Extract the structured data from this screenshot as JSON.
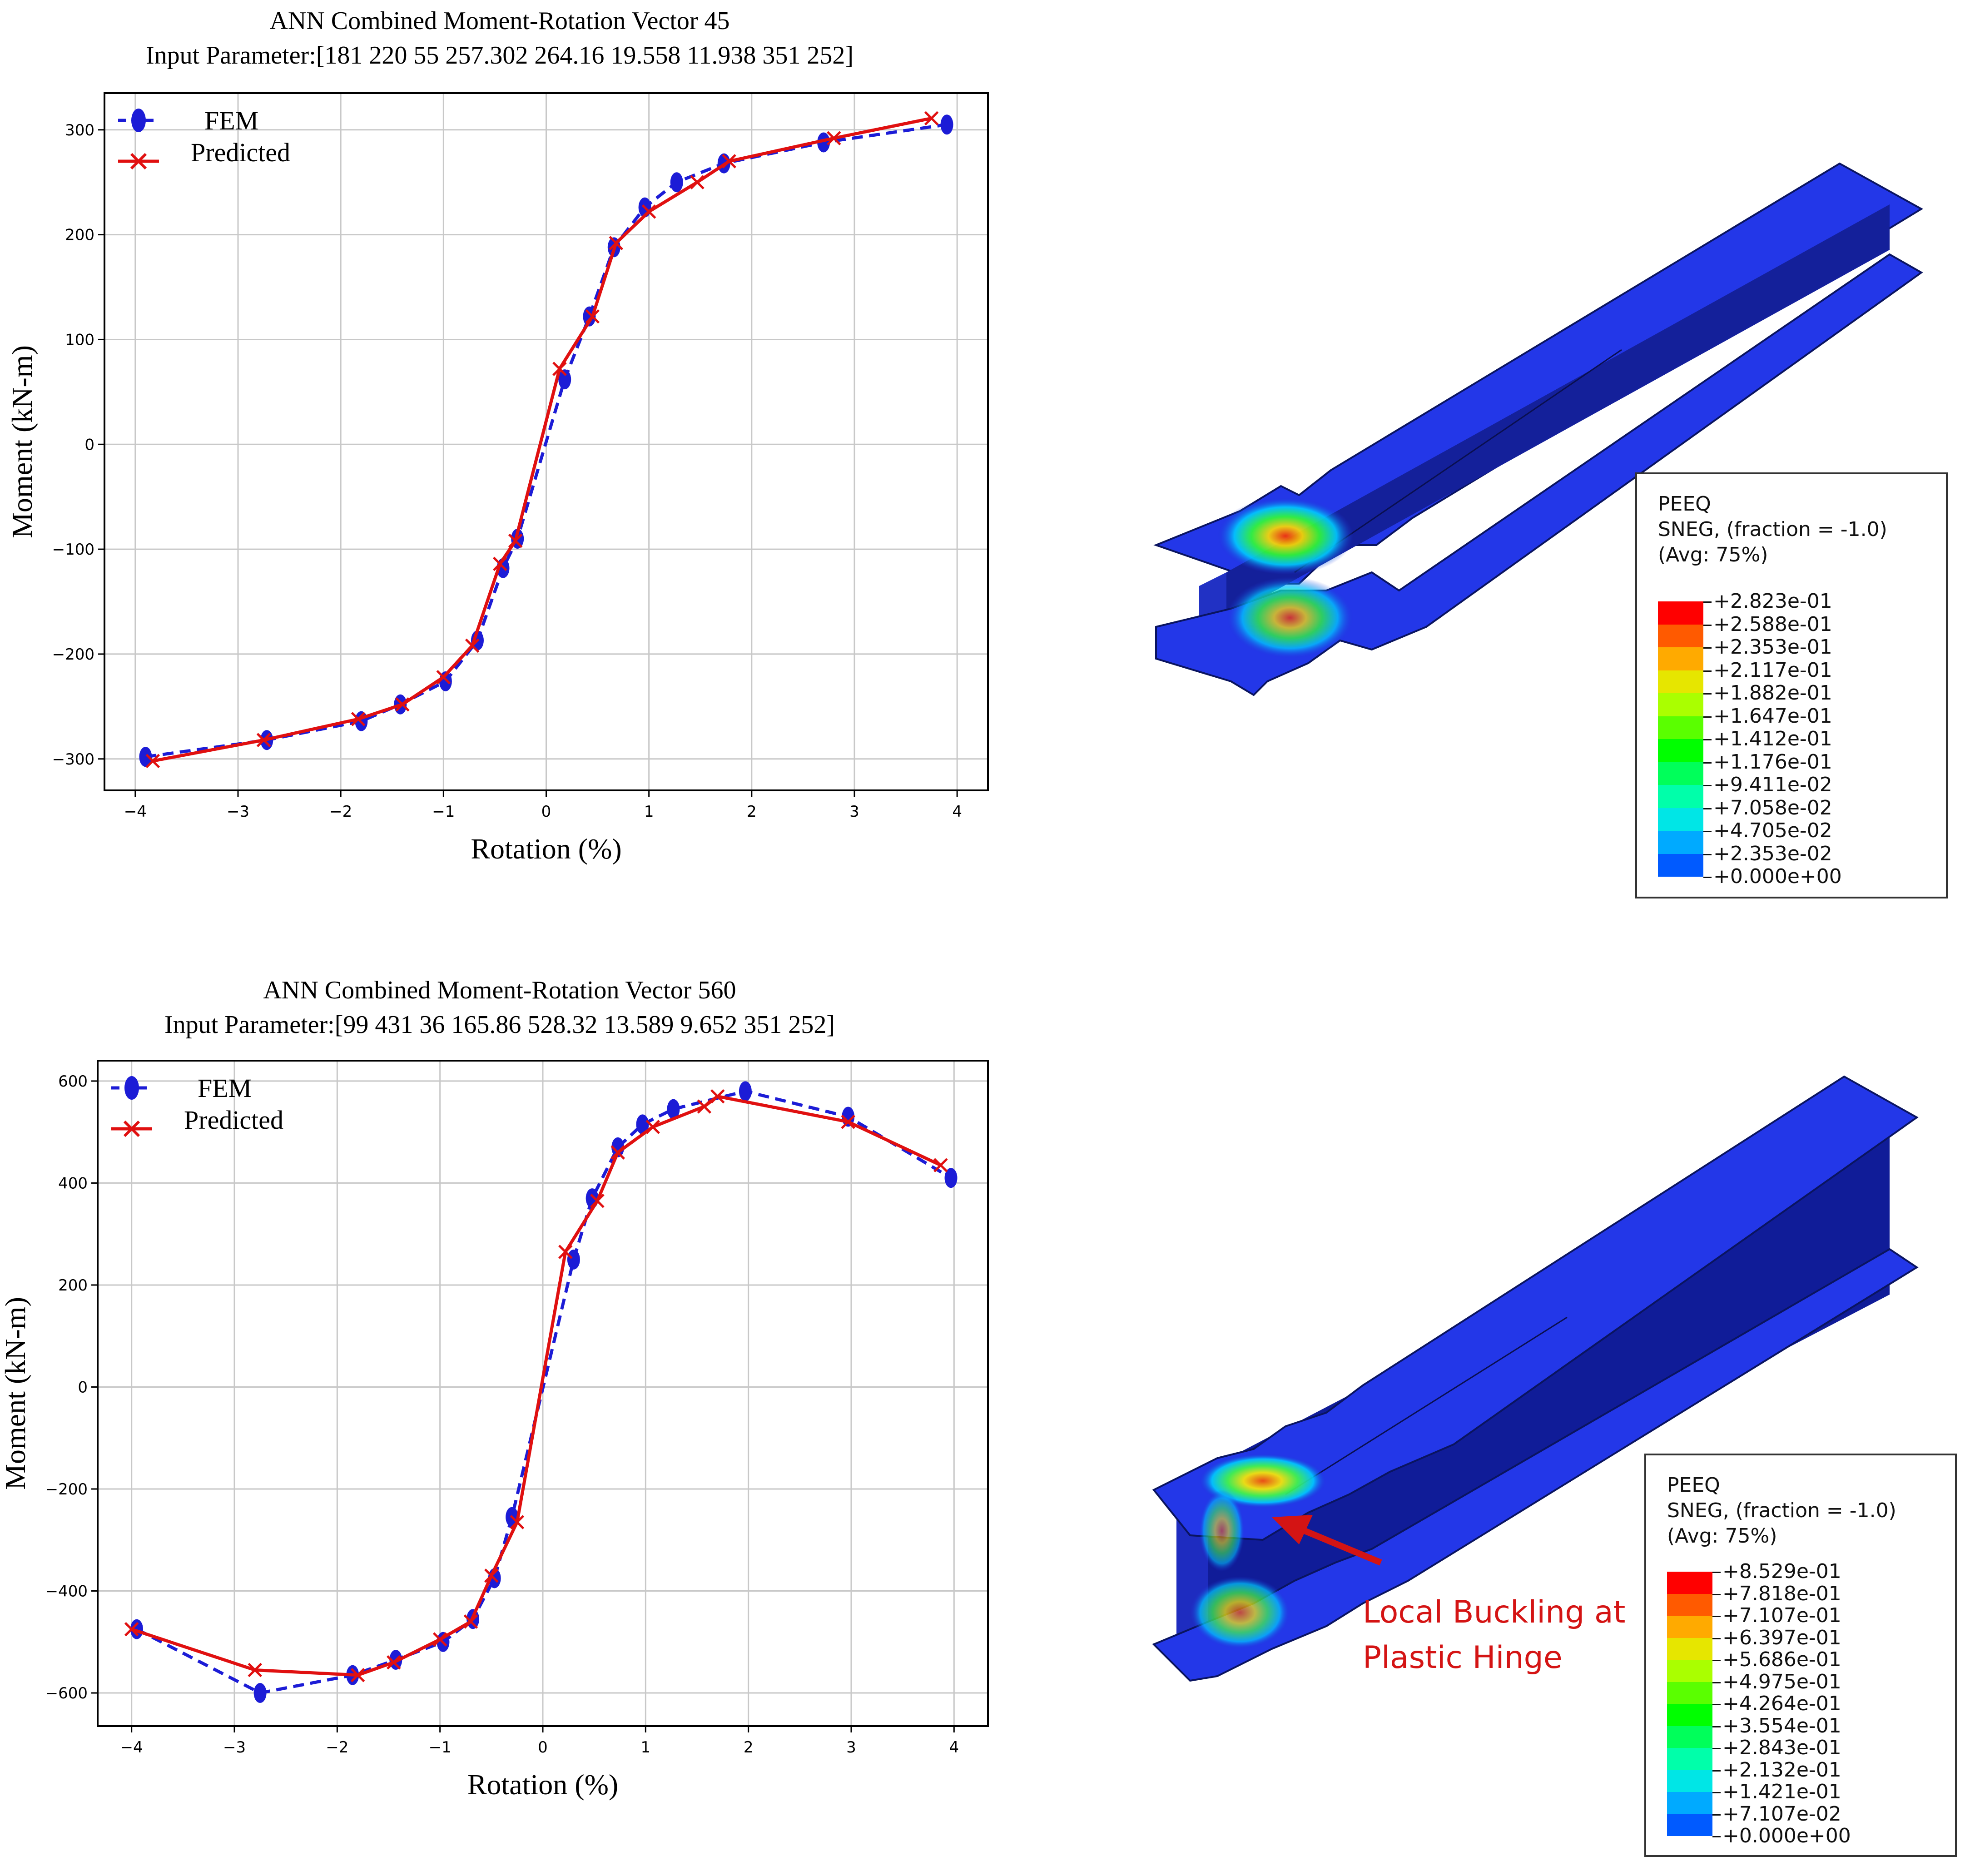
{
  "chart_data": [
    {
      "type": "line",
      "title": "ANN Combined Moment-Rotation Vector 45",
      "subtitle": "Input Parameter:[181  220  55  257.302  264.16  19.558  11.938  351  252]",
      "xlabel": "Rotation (%)",
      "ylabel": "Moment  (kN-m)",
      "xlim": [
        -4.3,
        4.3
      ],
      "ylim": [
        -330,
        335
      ],
      "xticks": [
        -4,
        -3,
        -2,
        -1,
        0,
        1,
        2,
        3,
        4
      ],
      "xtick_labels": [
        "−4",
        "−3",
        "−2",
        "−1",
        "0",
        "1",
        "2",
        "3",
        "4"
      ],
      "yticks": [
        -300,
        -200,
        -100,
        0,
        100,
        200,
        300
      ],
      "ytick_labels": [
        "−300",
        "−200",
        "−100",
        "0",
        "100",
        "200",
        "300"
      ],
      "grid": true,
      "legend_position": "top-left",
      "series": [
        {
          "name": "FEM",
          "color": "#1c1cd6",
          "style": "dashed-marker-ellipse",
          "x": [
            -3.9,
            -2.72,
            -1.8,
            -1.42,
            -0.98,
            -0.67,
            -0.42,
            -0.28,
            0.18,
            0.42,
            0.66,
            0.96,
            1.27,
            1.73,
            2.7,
            3.9
          ],
          "y": [
            -298,
            -282,
            -264,
            -248,
            -226,
            -187,
            -118,
            -90,
            62,
            122,
            188,
            226,
            250,
            268,
            288,
            305
          ]
        },
        {
          "name": "Predicted",
          "color": "#e01010",
          "style": "solid-marker-x",
          "x": [
            -3.83,
            -2.75,
            -1.83,
            -1.4,
            -1.0,
            -0.72,
            -0.45,
            -0.3,
            0.13,
            0.45,
            0.68,
            1.0,
            1.47,
            1.78,
            2.8,
            3.75
          ],
          "y": [
            -302,
            -282,
            -262,
            -248,
            -222,
            -192,
            -114,
            -92,
            72,
            122,
            192,
            222,
            250,
            270,
            292,
            311
          ]
        }
      ]
    },
    {
      "type": "line",
      "title": "ANN Combined Moment-Rotation Vector 560",
      "subtitle": "Input Parameter:[99  431  36  165.86  528.32  13.589  9.652  351  252]",
      "xlabel": "Rotation (%)",
      "ylabel": "Moment  (kN-m)",
      "xlim": [
        -4.33,
        4.33
      ],
      "ylim": [
        -665,
        640
      ],
      "xticks": [
        -4,
        -3,
        -2,
        -1,
        0,
        1,
        2,
        3,
        4
      ],
      "xtick_labels": [
        "−4",
        "−3",
        "−2",
        "−1",
        "0",
        "1",
        "2",
        "3",
        "4"
      ],
      "yticks": [
        -600,
        -400,
        -200,
        0,
        200,
        400,
        600
      ],
      "ytick_labels": [
        "−600",
        "−400",
        "−200",
        "0",
        "200",
        "400",
        "600"
      ],
      "grid": true,
      "legend_position": "top-left",
      "series": [
        {
          "name": "FEM",
          "color": "#1c1cd6",
          "style": "dashed-marker-ellipse",
          "x": [
            -3.95,
            -2.75,
            -1.85,
            -1.43,
            -0.97,
            -0.68,
            -0.47,
            -0.3,
            0.3,
            0.48,
            0.73,
            0.97,
            1.27,
            1.97,
            2.97,
            3.97
          ],
          "y": [
            -475,
            -600,
            -565,
            -535,
            -500,
            -455,
            -375,
            -255,
            250,
            370,
            470,
            515,
            545,
            580,
            530,
            410
          ]
        },
        {
          "name": "Predicted",
          "color": "#e01010",
          "style": "solid-marker-x",
          "x": [
            -4.0,
            -2.8,
            -1.8,
            -1.45,
            -1.0,
            -0.7,
            -0.5,
            -0.25,
            0.22,
            0.53,
            0.73,
            1.07,
            1.57,
            1.7,
            2.97,
            3.87
          ],
          "y": [
            -475,
            -555,
            -565,
            -540,
            -495,
            -460,
            -370,
            -265,
            265,
            365,
            460,
            510,
            550,
            570,
            520,
            435
          ]
        }
      ]
    }
  ],
  "contour_legends": [
    {
      "header": [
        "PEEQ",
        "SNEG, (fraction = -1.0)",
        "(Avg: 75%)"
      ],
      "levels": [
        "+2.823e-01",
        "+2.588e-01",
        "+2.353e-01",
        "+2.117e-01",
        "+1.882e-01",
        "+1.647e-01",
        "+1.412e-01",
        "+1.176e-01",
        "+9.411e-02",
        "+7.058e-02",
        "+4.705e-02",
        "+2.353e-02",
        "+0.000e+00"
      ],
      "colors": [
        "#ff0000",
        "#ff5a00",
        "#ffaa00",
        "#e6e600",
        "#aaff00",
        "#5aff00",
        "#00ff00",
        "#00ff5a",
        "#00ffaa",
        "#00e6e6",
        "#00aaff",
        "#005aff",
        "#0000ff"
      ]
    },
    {
      "header": [
        "PEEQ",
        "SNEG, (fraction = -1.0)",
        "(Avg: 75%)"
      ],
      "levels": [
        "+8.529e-01",
        "+7.818e-01",
        "+7.107e-01",
        "+6.397e-01",
        "+5.686e-01",
        "+4.975e-01",
        "+4.264e-01",
        "+3.554e-01",
        "+2.843e-01",
        "+2.132e-01",
        "+1.421e-01",
        "+7.107e-02",
        "+0.000e+00"
      ],
      "colors": [
        "#ff0000",
        "#ff5a00",
        "#ffaa00",
        "#e6e600",
        "#aaff00",
        "#5aff00",
        "#00ff00",
        "#00ff5a",
        "#00ffaa",
        "#00e6e6",
        "#00aaff",
        "#005aff",
        "#0000ff"
      ]
    }
  ],
  "annotation": {
    "line1": "Local Buckling at",
    "line2": "Plastic Hinge",
    "color": "#d41414"
  },
  "model_colors": {
    "steel": "#1f2fd6",
    "steel_top": "#2337e8",
    "web": "#1826b0",
    "web_dark": "#0c1888"
  }
}
